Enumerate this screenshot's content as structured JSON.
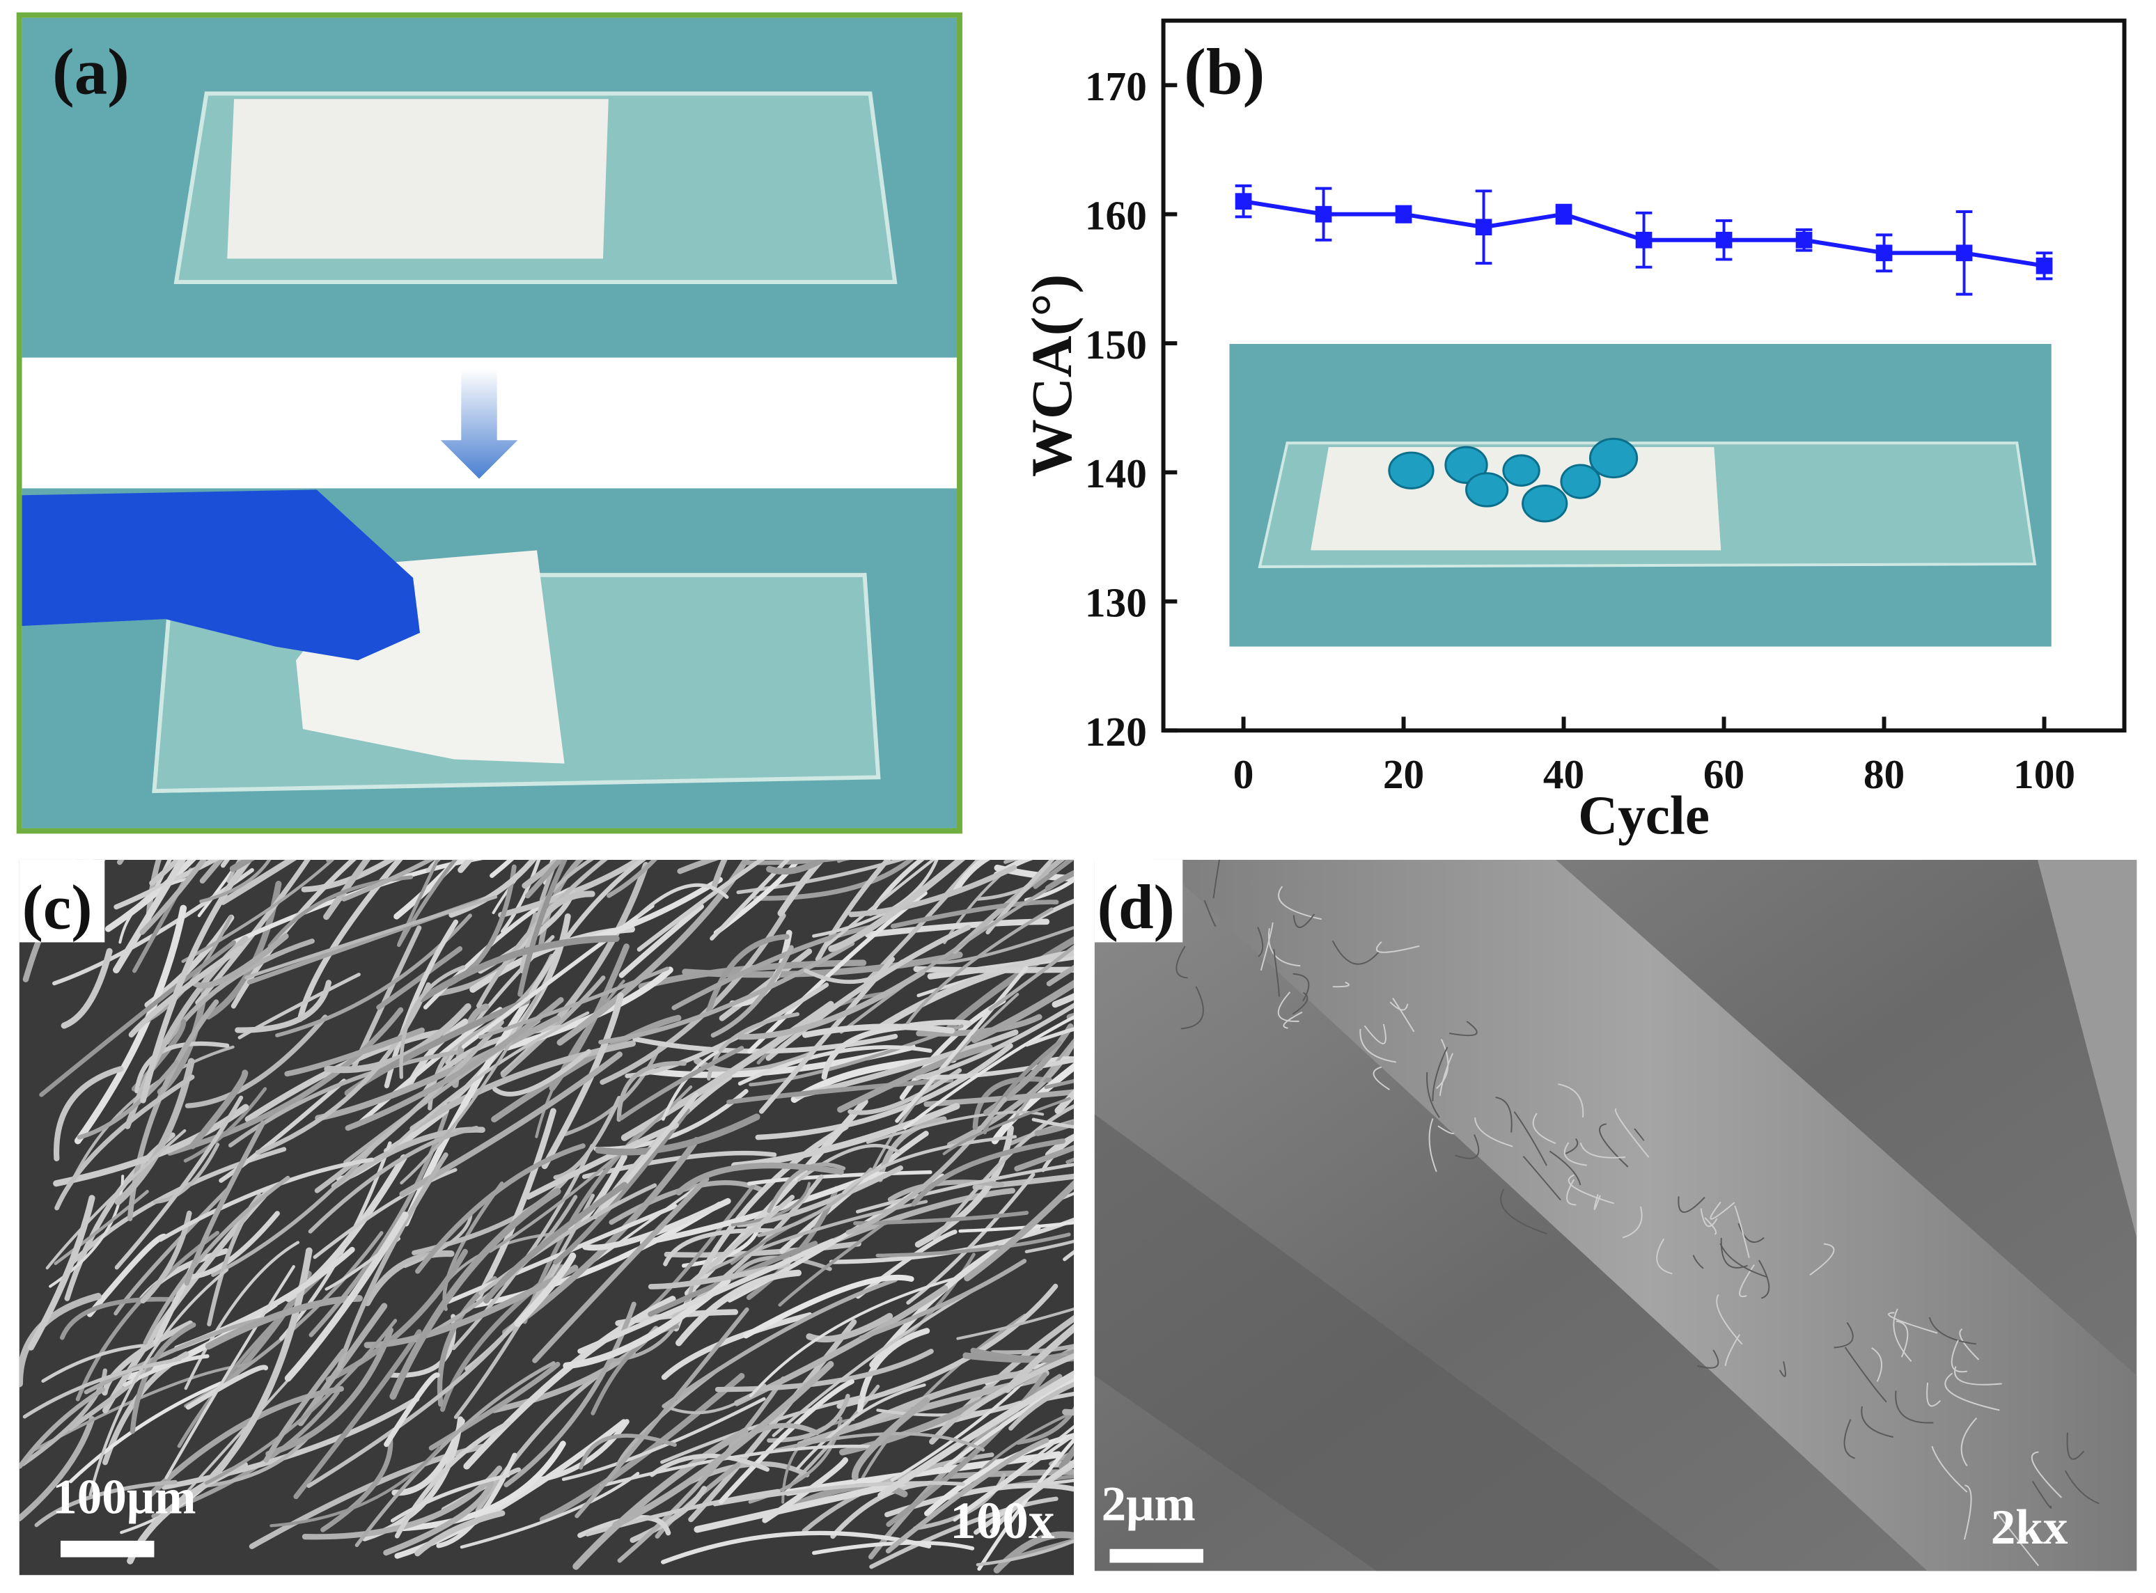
{
  "chart_data": {
    "type": "line",
    "panel_label": "(b)",
    "x_label": "Cycle",
    "y_label": "WCA(°)",
    "x": [
      0,
      10,
      20,
      30,
      40,
      50,
      60,
      70,
      80,
      90,
      100
    ],
    "values": [
      161,
      160,
      160,
      159,
      160,
      158,
      158,
      158,
      157,
      157,
      156
    ],
    "errors": [
      1.2,
      2.0,
      0.6,
      2.8,
      0.7,
      2.1,
      1.5,
      0.8,
      1.4,
      3.2,
      1.0
    ],
    "color": "#1a1aff",
    "xlim": [
      -10,
      110
    ],
    "ylim": [
      120,
      175
    ],
    "xticks": [
      0,
      20,
      40,
      60,
      80,
      100
    ],
    "yticks": [
      120,
      130,
      140,
      150,
      160,
      170
    ],
    "grid": false
  },
  "panels": {
    "a": {
      "label": "(a)"
    },
    "c": {
      "label": "(c)",
      "scale_bar": "100μm",
      "magnification": "100x"
    },
    "d": {
      "label": "(d)",
      "scale_bar": "2μm",
      "magnification": "2kx"
    }
  }
}
